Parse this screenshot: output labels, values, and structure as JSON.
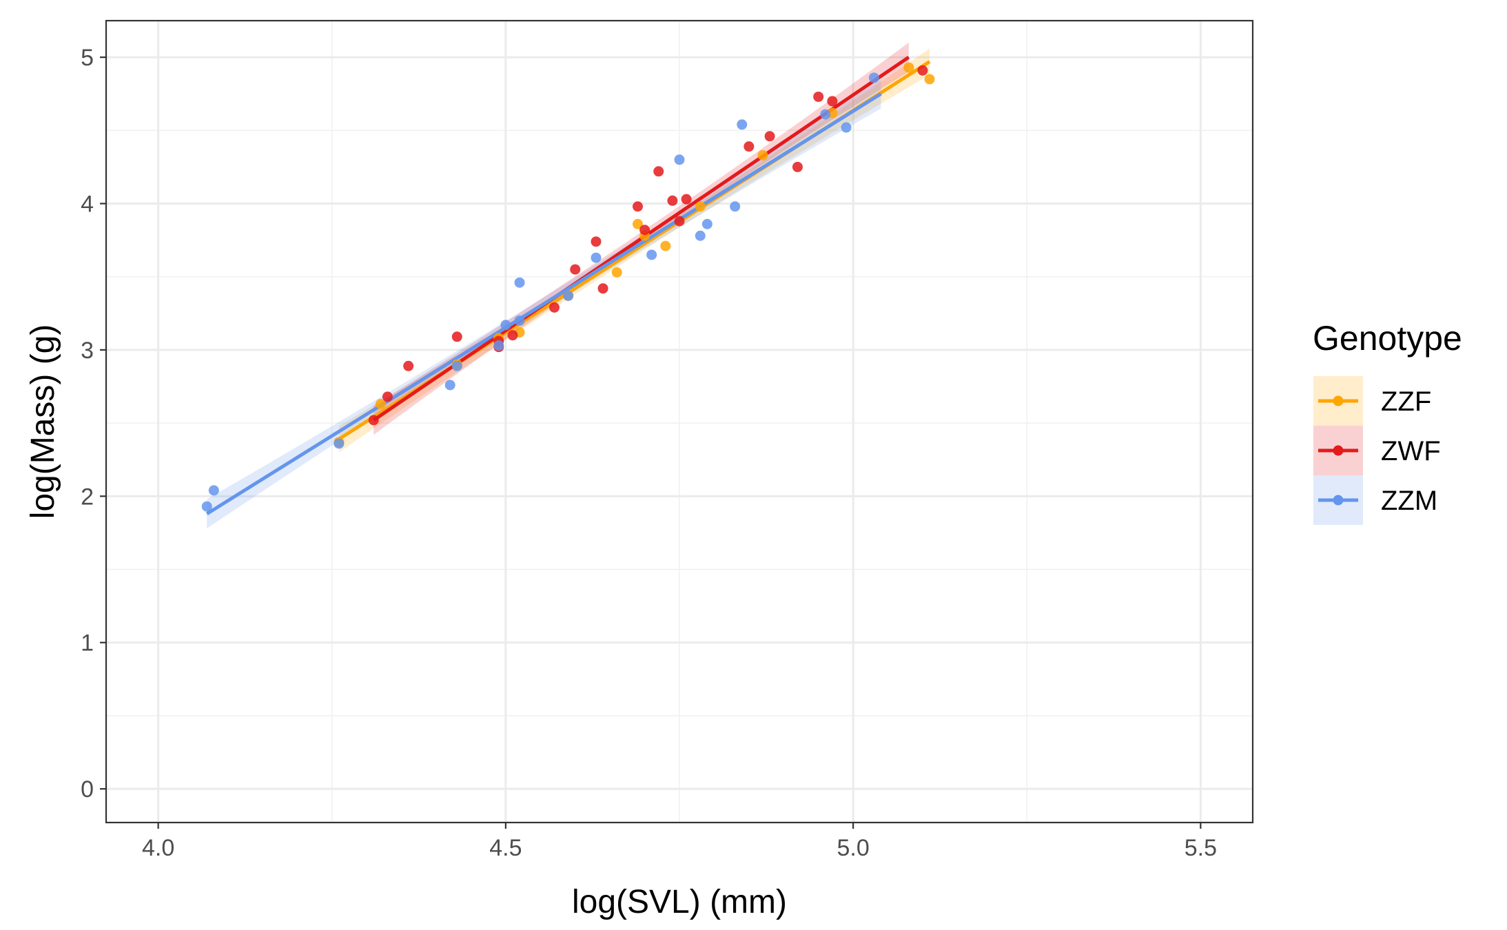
{
  "chart_data": {
    "type": "scatter",
    "title": "",
    "xlabel": "log(SVL) (mm)",
    "ylabel": "log(Mass) (g)",
    "xlim": [
      3.925,
      5.575
    ],
    "ylim": [
      -0.23,
      5.25
    ],
    "x_ticks": [
      4.0,
      4.5,
      5.0,
      5.5
    ],
    "x_tick_labels": [
      "4.0",
      "4.5",
      "5.0",
      "5.5"
    ],
    "y_ticks": [
      0,
      1,
      2,
      3,
      4,
      5
    ],
    "y_tick_labels": [
      "0",
      "1",
      "2",
      "3",
      "4",
      "5"
    ],
    "grid": true,
    "legend": {
      "title": "Genotype",
      "position": "right"
    },
    "series": [
      {
        "name": "ZZF",
        "color": "#FFA500",
        "fit": {
          "x": [
            4.26,
            5.11
          ],
          "y": [
            2.39,
            4.97
          ]
        },
        "ci_halfwidth": 0.09,
        "points": [
          [
            4.26,
            2.37
          ],
          [
            4.32,
            2.63
          ],
          [
            4.43,
            2.9
          ],
          [
            4.49,
            3.08
          ],
          [
            4.52,
            3.12
          ],
          [
            4.59,
            3.37
          ],
          [
            4.66,
            3.53
          ],
          [
            4.69,
            3.86
          ],
          [
            4.7,
            3.78
          ],
          [
            4.73,
            3.71
          ],
          [
            4.78,
            3.98
          ],
          [
            4.87,
            4.33
          ],
          [
            4.97,
            4.62
          ],
          [
            5.08,
            4.93
          ],
          [
            5.11,
            4.85
          ]
        ]
      },
      {
        "name": "ZWF",
        "color": "#E41A1C",
        "fit": {
          "x": [
            4.31,
            5.08
          ],
          "y": [
            2.52,
            5.0
          ]
        },
        "ci_halfwidth": 0.1,
        "points": [
          [
            4.31,
            2.52
          ],
          [
            4.33,
            2.68
          ],
          [
            4.36,
            2.89
          ],
          [
            4.43,
            3.09
          ],
          [
            4.49,
            3.02
          ],
          [
            4.49,
            3.06
          ],
          [
            4.51,
            3.1
          ],
          [
            4.57,
            3.29
          ],
          [
            4.6,
            3.55
          ],
          [
            4.63,
            3.74
          ],
          [
            4.64,
            3.42
          ],
          [
            4.69,
            3.98
          ],
          [
            4.7,
            3.82
          ],
          [
            4.72,
            4.22
          ],
          [
            4.74,
            4.02
          ],
          [
            4.75,
            3.88
          ],
          [
            4.76,
            4.03
          ],
          [
            4.85,
            4.39
          ],
          [
            4.88,
            4.46
          ],
          [
            4.92,
            4.25
          ],
          [
            4.95,
            4.73
          ],
          [
            4.97,
            4.7
          ],
          [
            5.1,
            4.91
          ]
        ]
      },
      {
        "name": "ZZM",
        "color": "#6495ED",
        "fit": {
          "x": [
            4.07,
            5.04
          ],
          "y": [
            1.88,
            4.75
          ]
        },
        "ci_halfwidth": 0.1,
        "points": [
          [
            4.07,
            1.93
          ],
          [
            4.08,
            2.04
          ],
          [
            4.26,
            2.36
          ],
          [
            4.42,
            2.76
          ],
          [
            4.43,
            2.89
          ],
          [
            4.49,
            3.03
          ],
          [
            4.5,
            3.17
          ],
          [
            4.52,
            3.2
          ],
          [
            4.52,
            3.46
          ],
          [
            4.59,
            3.37
          ],
          [
            4.63,
            3.63
          ],
          [
            4.71,
            3.65
          ],
          [
            4.75,
            4.3
          ],
          [
            4.78,
            3.78
          ],
          [
            4.79,
            3.86
          ],
          [
            4.83,
            3.98
          ],
          [
            4.84,
            4.54
          ],
          [
            4.96,
            4.61
          ],
          [
            4.99,
            4.52
          ],
          [
            5.03,
            4.86
          ]
        ]
      }
    ]
  }
}
